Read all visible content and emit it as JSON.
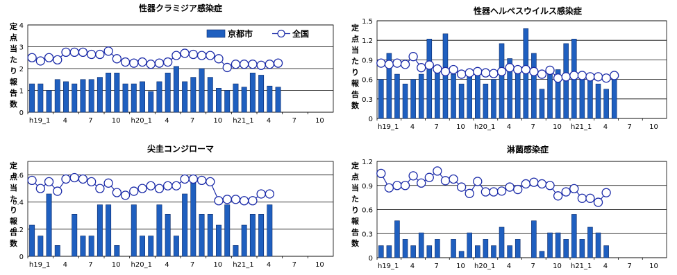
{
  "colors": {
    "bar_fill": "#1f5fbf",
    "bar_stroke": "#0a2a6a",
    "line": "#1a2aa8",
    "marker_fill": "#ffffff",
    "grid": "#000000"
  },
  "legend": {
    "city": "京都市",
    "national": "全国"
  },
  "chart_data": [
    {
      "type": "bar",
      "title": "性器クラミジア感染症",
      "ylabel": "定点当たり報告数",
      "ylim": [
        0,
        4
      ],
      "yticks": [
        "0",
        "1",
        "2",
        "3",
        "4"
      ],
      "xticks": [
        "h19_1",
        "4",
        "7",
        "10",
        "h20_1",
        "4",
        "7",
        "10",
        "h21_1",
        "4",
        "7",
        "10"
      ],
      "num_months": 36,
      "legend": [
        "京都市",
        "全国"
      ],
      "series": [
        {
          "name": "京都市",
          "values": [
            1.3,
            1.3,
            1.0,
            1.5,
            1.4,
            1.3,
            1.5,
            1.5,
            1.6,
            1.8,
            1.8,
            1.3,
            1.3,
            1.4,
            0.95,
            1.4,
            1.8,
            2.1,
            1.4,
            1.6,
            2.0,
            1.6,
            1.1,
            1.0,
            1.3,
            1.15,
            1.8,
            1.7,
            1.2,
            1.15
          ]
        },
        {
          "name": "全国",
          "values": [
            2.5,
            2.35,
            2.5,
            2.4,
            2.75,
            2.75,
            2.75,
            2.65,
            2.65,
            2.8,
            2.45,
            2.3,
            2.25,
            2.3,
            2.2,
            2.25,
            2.3,
            2.6,
            2.7,
            2.65,
            2.6,
            2.6,
            2.45,
            2.05,
            2.2,
            2.2,
            2.2,
            2.15,
            2.2,
            2.25
          ]
        }
      ]
    },
    {
      "type": "bar",
      "title": "性器ヘルペスウイルス感染症",
      "ylabel": "定点当たり報告数",
      "ylim": [
        0,
        1.5
      ],
      "yticks": [
        "0",
        "0.3",
        "0.6",
        "0.9",
        "1.2",
        "1.5"
      ],
      "xticks": [
        "h19_1",
        "4",
        "7",
        "10",
        "h20_1",
        "4",
        "7",
        "10",
        "h21_1",
        "4",
        "7",
        "10"
      ],
      "num_months": 36,
      "series": [
        {
          "name": "京都市",
          "values": [
            0.6,
            1.0,
            0.68,
            0.53,
            0.6,
            0.68,
            1.22,
            0.8,
            1.3,
            0.68,
            0.53,
            0.75,
            0.75,
            0.53,
            0.6,
            1.15,
            0.92,
            0.8,
            1.38,
            1.0,
            0.45,
            0.75,
            0.75,
            1.15,
            1.22,
            0.68,
            0.6,
            0.53,
            0.45,
            0.68
          ]
        },
        {
          "name": "全国",
          "values": [
            0.85,
            0.83,
            0.85,
            0.83,
            0.95,
            0.78,
            0.82,
            0.76,
            0.72,
            0.75,
            0.68,
            0.7,
            0.72,
            0.7,
            0.69,
            0.72,
            0.78,
            0.75,
            0.75,
            0.72,
            0.68,
            0.74,
            0.62,
            0.64,
            0.66,
            0.66,
            0.64,
            0.64,
            0.62,
            0.66
          ]
        }
      ]
    },
    {
      "type": "bar",
      "title": "尖圭コンジローマ",
      "ylabel": "定点当たり報告数",
      "ylim": [
        0,
        0.7
      ],
      "yticks": [
        "0",
        "0.2",
        "0.4",
        "0.6"
      ],
      "xticks": [
        "h19_1",
        "4",
        "7",
        "10",
        "h20_1",
        "4",
        "7",
        "10",
        "h21_1",
        "4",
        "7",
        "10"
      ],
      "num_months": 36,
      "series": [
        {
          "name": "京都市",
          "values": [
            0.23,
            0.15,
            0.46,
            0.08,
            0,
            0.31,
            0.15,
            0.15,
            0.38,
            0.38,
            0.08,
            0,
            0.38,
            0.15,
            0.15,
            0.38,
            0.31,
            0.15,
            0.46,
            0.54,
            0.31,
            0.31,
            0.23,
            0.38,
            0.08,
            0.23,
            0.31,
            0.31,
            0.38
          ]
        },
        {
          "name": "全国",
          "values": [
            0.56,
            0.5,
            0.55,
            0.48,
            0.57,
            0.58,
            0.57,
            0.55,
            0.5,
            0.54,
            0.47,
            0.45,
            0.48,
            0.5,
            0.52,
            0.5,
            0.52,
            0.52,
            0.57,
            0.57,
            0.56,
            0.55,
            0.41,
            0.42,
            0.42,
            0.41,
            0.41,
            0.46,
            0.46
          ]
        }
      ]
    },
    {
      "type": "bar",
      "title": "淋菌感染症",
      "ylabel": "定点当たり報告数",
      "ylim": [
        0,
        1.2
      ],
      "yticks": [
        "0",
        "0.3",
        "0.6",
        "0.9",
        "1.2"
      ],
      "xticks": [
        "h19_1",
        "4",
        "7",
        "10",
        "h20_1",
        "4",
        "7",
        "10",
        "h21_1",
        "4",
        "7",
        "10"
      ],
      "num_months": 36,
      "series": [
        {
          "name": "京都市",
          "values": [
            0.15,
            0.15,
            0.46,
            0.23,
            0.15,
            0.31,
            0.15,
            0.23,
            0,
            0.23,
            0.08,
            0.31,
            0.15,
            0.23,
            0.15,
            0.38,
            0.15,
            0.23,
            0,
            0.46,
            0.08,
            0.31,
            0.31,
            0.23,
            0.54,
            0.23,
            0.38,
            0.31,
            0.15
          ]
        },
        {
          "name": "全国",
          "values": [
            1.05,
            0.87,
            0.9,
            0.9,
            1.02,
            0.93,
            1.0,
            1.08,
            0.96,
            0.98,
            0.88,
            0.8,
            0.95,
            0.82,
            0.82,
            0.83,
            0.88,
            0.85,
            0.92,
            0.94,
            0.92,
            0.9,
            0.77,
            0.82,
            0.86,
            0.74,
            0.74,
            0.69,
            0.81
          ]
        }
      ]
    }
  ]
}
